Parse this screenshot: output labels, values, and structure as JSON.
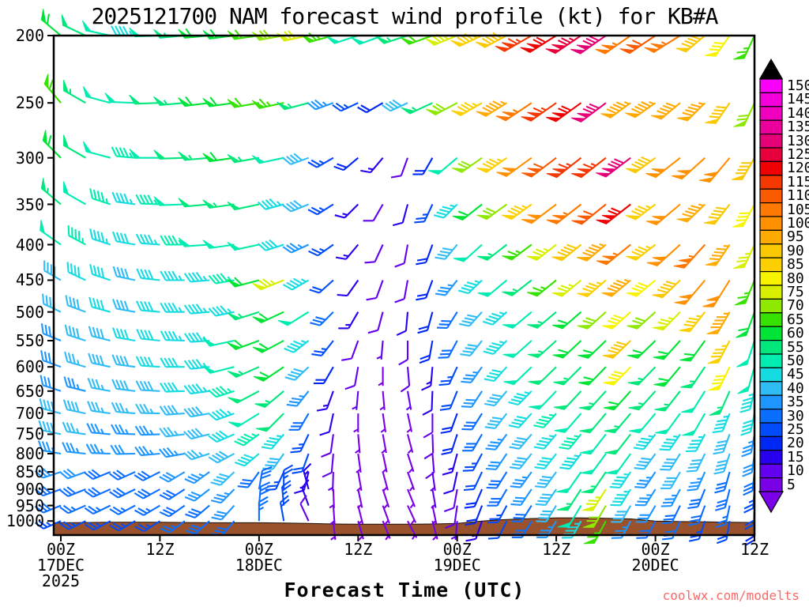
{
  "title": "2025121700 NAM forecast wind profile (kt) for KB#A",
  "x_axis_title": "Forecast Time (UTC)",
  "watermark": "coolwx.com/modelts",
  "colors": {
    "background": "#ffffff",
    "frame": "#000000",
    "terrain": "#9a522c",
    "terrain_outline": "#1a0d00",
    "watermark": "#ff6666",
    "colorbar_top_arrow": "#000000"
  },
  "y_axis": {
    "label_units": "hPa",
    "pressure_levels": [
      200,
      250,
      300,
      350,
      400,
      450,
      500,
      550,
      600,
      650,
      700,
      750,
      800,
      850,
      900,
      950,
      1000
    ]
  },
  "x_axis": {
    "ticks": [
      {
        "hour_index": 0,
        "label": "00Z",
        "date": "17DEC",
        "year": "2025"
      },
      {
        "hour_index": 4,
        "label": "12Z"
      },
      {
        "hour_index": 8,
        "label": "00Z",
        "date": "18DEC"
      },
      {
        "hour_index": 12,
        "label": "12Z"
      },
      {
        "hour_index": 16,
        "label": "00Z",
        "date": "19DEC"
      },
      {
        "hour_index": 20,
        "label": "12Z"
      },
      {
        "hour_index": 24,
        "label": "00Z",
        "date": "20DEC"
      },
      {
        "hour_index": 28,
        "label": "12Z"
      }
    ]
  },
  "colorbar": {
    "values": [
      150,
      145,
      140,
      135,
      130,
      125,
      120,
      115,
      110,
      105,
      100,
      95,
      90,
      85,
      80,
      75,
      70,
      65,
      60,
      55,
      50,
      45,
      40,
      35,
      30,
      25,
      20,
      15,
      10,
      5
    ],
    "colormap": {
      "5": "#7a00e8",
      "10": "#6400f0",
      "15": "#2800f0",
      "20": "#0028f5",
      "25": "#004cfa",
      "30": "#0a6eff",
      "35": "#1e96ff",
      "40": "#30bcf5",
      "45": "#14dce1",
      "50": "#00ecb0",
      "55": "#00e87c",
      "60": "#00e438",
      "65": "#38e200",
      "70": "#8ee800",
      "75": "#d8f000",
      "80": "#f8f400",
      "85": "#fcd000",
      "90": "#fac800",
      "95": "#ffaa00",
      "100": "#ff9100",
      "105": "#ff7800",
      "110": "#fa5a00",
      "115": "#f53700",
      "120": "#f00000",
      "125": "#e6003c",
      "130": "#e60078",
      "135": "#eb009b",
      "140": "#f000be",
      "145": "#f500dc",
      "150": "#fa00fa"
    }
  },
  "chart_data": {
    "type": "wind-profile-barbs",
    "title": "2025121700 NAM forecast wind profile (kt) for KB#A",
    "xlabel": "Forecast Time (UTC)",
    "model": "NAM",
    "station": "KB#A",
    "init_time": "2025121700",
    "x_hours": [
      0,
      3,
      6,
      9,
      12,
      15,
      18,
      21,
      24,
      27,
      30,
      33,
      36,
      39,
      42,
      45,
      48,
      51,
      54,
      57,
      60,
      63,
      66,
      69,
      72,
      75,
      78,
      81,
      84
    ],
    "pressure_levels_hpa": [
      200,
      250,
      300,
      350,
      400,
      450,
      500,
      550,
      600,
      650,
      700,
      750,
      800,
      850,
      900,
      950,
      1000
    ],
    "surface_pressure_hpa": [
      1006,
      1005,
      1004,
      1004,
      1004,
      1005,
      1006,
      1006,
      1006,
      1007,
      1008,
      1010,
      1011,
      1011,
      1011,
      1010,
      1008,
      1000,
      995,
      992,
      990,
      990,
      991,
      993,
      1000,
      1002,
      1003,
      1004,
      1005
    ],
    "series": [
      {
        "level_hpa": 200,
        "speeds_kt": [
          60,
          52,
          48,
          45,
          50,
          55,
          58,
          60,
          62,
          68,
          72,
          65,
          50,
          48,
          55,
          62,
          75,
          85,
          90,
          115,
          120,
          125,
          130,
          105,
          110,
          105,
          90,
          80,
          65
        ],
        "dirs_from_deg": [
          310,
          295,
          282,
          272,
          268,
          265,
          265,
          263,
          262,
          260,
          258,
          255,
          252,
          250,
          252,
          250,
          248,
          245,
          242,
          240,
          238,
          236,
          235,
          235,
          236,
          238,
          230,
          215,
          205
        ]
      },
      {
        "level_hpa": 250,
        "speeds_kt": [
          65,
          55,
          50,
          48,
          52,
          55,
          58,
          60,
          62,
          65,
          55,
          35,
          25,
          20,
          40,
          55,
          70,
          85,
          95,
          105,
          115,
          120,
          130,
          95,
          95,
          92,
          95,
          90,
          70
        ],
        "dirs_from_deg": [
          320,
          300,
          285,
          272,
          268,
          265,
          263,
          262,
          260,
          258,
          255,
          250,
          245,
          240,
          245,
          245,
          242,
          240,
          238,
          236,
          235,
          234,
          233,
          234,
          235,
          230,
          225,
          215,
          205
        ]
      },
      {
        "level_hpa": 300,
        "speeds_kt": [
          60,
          52,
          48,
          46,
          50,
          52,
          55,
          58,
          55,
          48,
          40,
          25,
          20,
          15,
          10,
          20,
          50,
          70,
          85,
          100,
          110,
          115,
          115,
          130,
          90,
          100,
          100,
          98,
          90
        ],
        "dirs_from_deg": [
          315,
          300,
          285,
          275,
          270,
          268,
          265,
          262,
          260,
          258,
          250,
          240,
          230,
          220,
          200,
          210,
          230,
          235,
          235,
          234,
          233,
          232,
          232,
          233,
          234,
          232,
          228,
          220,
          210
        ]
      },
      {
        "level_hpa": 350,
        "speeds_kt": [
          55,
          50,
          46,
          44,
          46,
          50,
          52,
          55,
          52,
          45,
          38,
          25,
          15,
          10,
          12,
          25,
          45,
          60,
          70,
          85,
          100,
          105,
          110,
          120,
          85,
          100,
          95,
          90,
          80
        ],
        "dirs_from_deg": [
          310,
          300,
          288,
          278,
          272,
          268,
          265,
          262,
          258,
          255,
          248,
          238,
          225,
          210,
          195,
          205,
          225,
          232,
          234,
          234,
          233,
          232,
          231,
          232,
          233,
          230,
          226,
          218,
          208
        ]
      },
      {
        "level_hpa": 400,
        "speeds_kt": [
          50,
          46,
          44,
          42,
          44,
          46,
          48,
          50,
          48,
          42,
          35,
          25,
          15,
          10,
          10,
          20,
          40,
          50,
          55,
          65,
          75,
          90,
          95,
          105,
          85,
          100,
          105,
          95,
          75
        ],
        "dirs_from_deg": [
          305,
          298,
          288,
          280,
          274,
          270,
          266,
          262,
          258,
          252,
          245,
          235,
          220,
          205,
          190,
          200,
          220,
          228,
          232,
          233,
          232,
          231,
          230,
          231,
          232,
          228,
          222,
          214,
          205
        ]
      },
      {
        "level_hpa": 450,
        "speeds_kt": [
          40,
          42,
          42,
          40,
          42,
          44,
          45,
          46,
          60,
          75,
          45,
          22,
          12,
          8,
          10,
          18,
          35,
          45,
          50,
          55,
          65,
          75,
          85,
          95,
          80,
          90,
          100,
          100,
          65
        ],
        "dirs_from_deg": [
          300,
          295,
          288,
          282,
          276,
          270,
          265,
          260,
          255,
          248,
          240,
          228,
          215,
          200,
          190,
          200,
          218,
          226,
          230,
          232,
          231,
          230,
          229,
          230,
          230,
          226,
          220,
          212,
          202
        ]
      },
      {
        "level_hpa": 500,
        "speeds_kt": [
          38,
          40,
          41,
          40,
          41,
          43,
          44,
          45,
          55,
          58,
          50,
          30,
          15,
          8,
          12,
          20,
          30,
          40,
          45,
          50,
          55,
          60,
          70,
          80,
          70,
          75,
          85,
          95,
          60
        ],
        "dirs_from_deg": [
          295,
          290,
          285,
          280,
          275,
          270,
          265,
          258,
          252,
          245,
          238,
          225,
          210,
          195,
          185,
          195,
          212,
          222,
          228,
          230,
          230,
          229,
          228,
          228,
          228,
          224,
          218,
          210,
          200
        ]
      },
      {
        "level_hpa": 550,
        "speeds_kt": [
          35,
          38,
          40,
          41,
          42,
          43,
          44,
          50,
          58,
          60,
          45,
          25,
          10,
          6,
          10,
          18,
          28,
          38,
          45,
          50,
          55,
          60,
          60,
          90,
          60,
          60,
          60,
          85,
          50
        ],
        "dirs_from_deg": [
          292,
          288,
          284,
          280,
          276,
          272,
          266,
          258,
          250,
          242,
          232,
          218,
          200,
          185,
          180,
          190,
          208,
          218,
          225,
          228,
          228,
          227,
          226,
          226,
          226,
          222,
          216,
          208,
          198
        ]
      },
      {
        "level_hpa": 600,
        "speeds_kt": [
          33,
          36,
          38,
          40,
          41,
          42,
          44,
          48,
          55,
          58,
          40,
          20,
          8,
          5,
          8,
          15,
          25,
          35,
          42,
          48,
          52,
          55,
          58,
          80,
          55,
          58,
          55,
          80,
          48
        ],
        "dirs_from_deg": [
          290,
          286,
          282,
          278,
          274,
          270,
          264,
          256,
          246,
          236,
          226,
          210,
          190,
          180,
          175,
          185,
          205,
          215,
          222,
          226,
          226,
          225,
          224,
          224,
          224,
          220,
          214,
          206,
          196
        ]
      },
      {
        "level_hpa": 650,
        "speeds_kt": [
          32,
          35,
          37,
          39,
          40,
          41,
          43,
          46,
          52,
          55,
          35,
          15,
          6,
          5,
          6,
          12,
          22,
          32,
          40,
          45,
          50,
          52,
          55,
          60,
          55,
          55,
          50,
          55,
          45
        ],
        "dirs_from_deg": [
          288,
          284,
          280,
          277,
          273,
          268,
          262,
          252,
          242,
          230,
          218,
          200,
          185,
          175,
          170,
          182,
          202,
          213,
          220,
          224,
          224,
          223,
          222,
          222,
          222,
          218,
          212,
          204,
          194
        ]
      },
      {
        "level_hpa": 700,
        "speeds_kt": [
          40,
          38,
          37,
          36,
          37,
          38,
          40,
          44,
          50,
          52,
          30,
          12,
          5,
          5,
          5,
          10,
          20,
          30,
          38,
          42,
          46,
          50,
          52,
          55,
          50,
          50,
          48,
          45,
          42
        ],
        "dirs_from_deg": [
          285,
          282,
          278,
          275,
          271,
          266,
          260,
          250,
          238,
          225,
          210,
          192,
          180,
          172,
          168,
          180,
          200,
          212,
          218,
          222,
          222,
          221,
          220,
          220,
          220,
          216,
          210,
          202,
          192
        ]
      },
      {
        "level_hpa": 750,
        "speeds_kt": [
          38,
          36,
          35,
          34,
          35,
          36,
          38,
          42,
          46,
          45,
          25,
          10,
          5,
          5,
          5,
          8,
          18,
          28,
          35,
          40,
          44,
          46,
          50,
          52,
          45,
          45,
          45,
          40,
          35
        ],
        "dirs_from_deg": [
          282,
          278,
          275,
          272,
          268,
          263,
          256,
          246,
          234,
          220,
          205,
          188,
          175,
          170,
          165,
          178,
          198,
          210,
          216,
          220,
          220,
          219,
          218,
          218,
          218,
          214,
          208,
          200,
          190
        ]
      },
      {
        "level_hpa": 800,
        "speeds_kt": [
          35,
          34,
          33,
          32,
          33,
          34,
          36,
          40,
          42,
          40,
          22,
          8,
          5,
          5,
          5,
          8,
          15,
          25,
          32,
          38,
          42,
          45,
          48,
          50,
          40,
          40,
          40,
          38,
          32
        ],
        "dirs_from_deg": [
          280,
          276,
          272,
          269,
          265,
          260,
          252,
          242,
          230,
          215,
          200,
          185,
          172,
          168,
          162,
          175,
          195,
          208,
          214,
          218,
          218,
          217,
          216,
          216,
          216,
          212,
          206,
          198,
          188
        ]
      },
      {
        "level_hpa": 850,
        "speeds_kt": [
          32,
          31,
          30,
          30,
          30,
          32,
          34,
          38,
          30,
          25,
          15,
          6,
          5,
          5,
          5,
          6,
          12,
          22,
          30,
          35,
          40,
          50,
          55,
          45,
          35,
          38,
          35,
          30,
          28
        ],
        "dirs_from_deg": [
          252,
          250,
          248,
          246,
          243,
          239,
          234,
          226,
          216,
          205,
          194,
          182,
          170,
          165,
          160,
          172,
          192,
          205,
          212,
          216,
          216,
          215,
          214,
          214,
          214,
          210,
          204,
          196,
          186
        ]
      },
      {
        "level_hpa": 900,
        "speeds_kt": [
          30,
          29,
          28,
          28,
          29,
          30,
          32,
          35,
          30,
          25,
          15,
          5,
          5,
          5,
          5,
          6,
          10,
          20,
          28,
          32,
          40,
          55,
          75,
          45,
          35,
          33,
          30,
          28,
          25
        ],
        "dirs_from_deg": [
          250,
          248,
          246,
          244,
          241,
          237,
          232,
          224,
          10,
          0,
          345,
          178,
          168,
          162,
          158,
          170,
          190,
          203,
          210,
          214,
          214,
          213,
          212,
          212,
          212,
          208,
          202,
          194,
          184
        ]
      },
      {
        "level_hpa": 950,
        "speeds_kt": [
          28,
          27,
          26,
          26,
          27,
          28,
          30,
          32,
          28,
          25,
          12,
          5,
          5,
          5,
          5,
          5,
          8,
          18,
          25,
          30,
          38,
          50,
          70,
          40,
          32,
          30,
          28,
          26,
          22
        ],
        "dirs_from_deg": [
          248,
          246,
          244,
          242,
          239,
          235,
          230,
          222,
          5,
          355,
          340,
          176,
          166,
          160,
          155,
          168,
          188,
          201,
          208,
          212,
          212,
          211,
          210,
          210,
          210,
          206,
          200,
          192,
          182
        ]
      },
      {
        "level_hpa": 1000,
        "speeds_kt": [
          25,
          25,
          24,
          24,
          25,
          26,
          28,
          30,
          26,
          22,
          10,
          5,
          5,
          5,
          5,
          5,
          6,
          15,
          22,
          28,
          35,
          45,
          65,
          35,
          30,
          28,
          25,
          22,
          18
        ],
        "dirs_from_deg": [
          246,
          244,
          242,
          240,
          237,
          233,
          228,
          220,
          0,
          350,
          335,
          174,
          164,
          158,
          152,
          165,
          185,
          199,
          206,
          210,
          210,
          209,
          208,
          208,
          208,
          204,
          198,
          190,
          180
        ]
      }
    ]
  }
}
